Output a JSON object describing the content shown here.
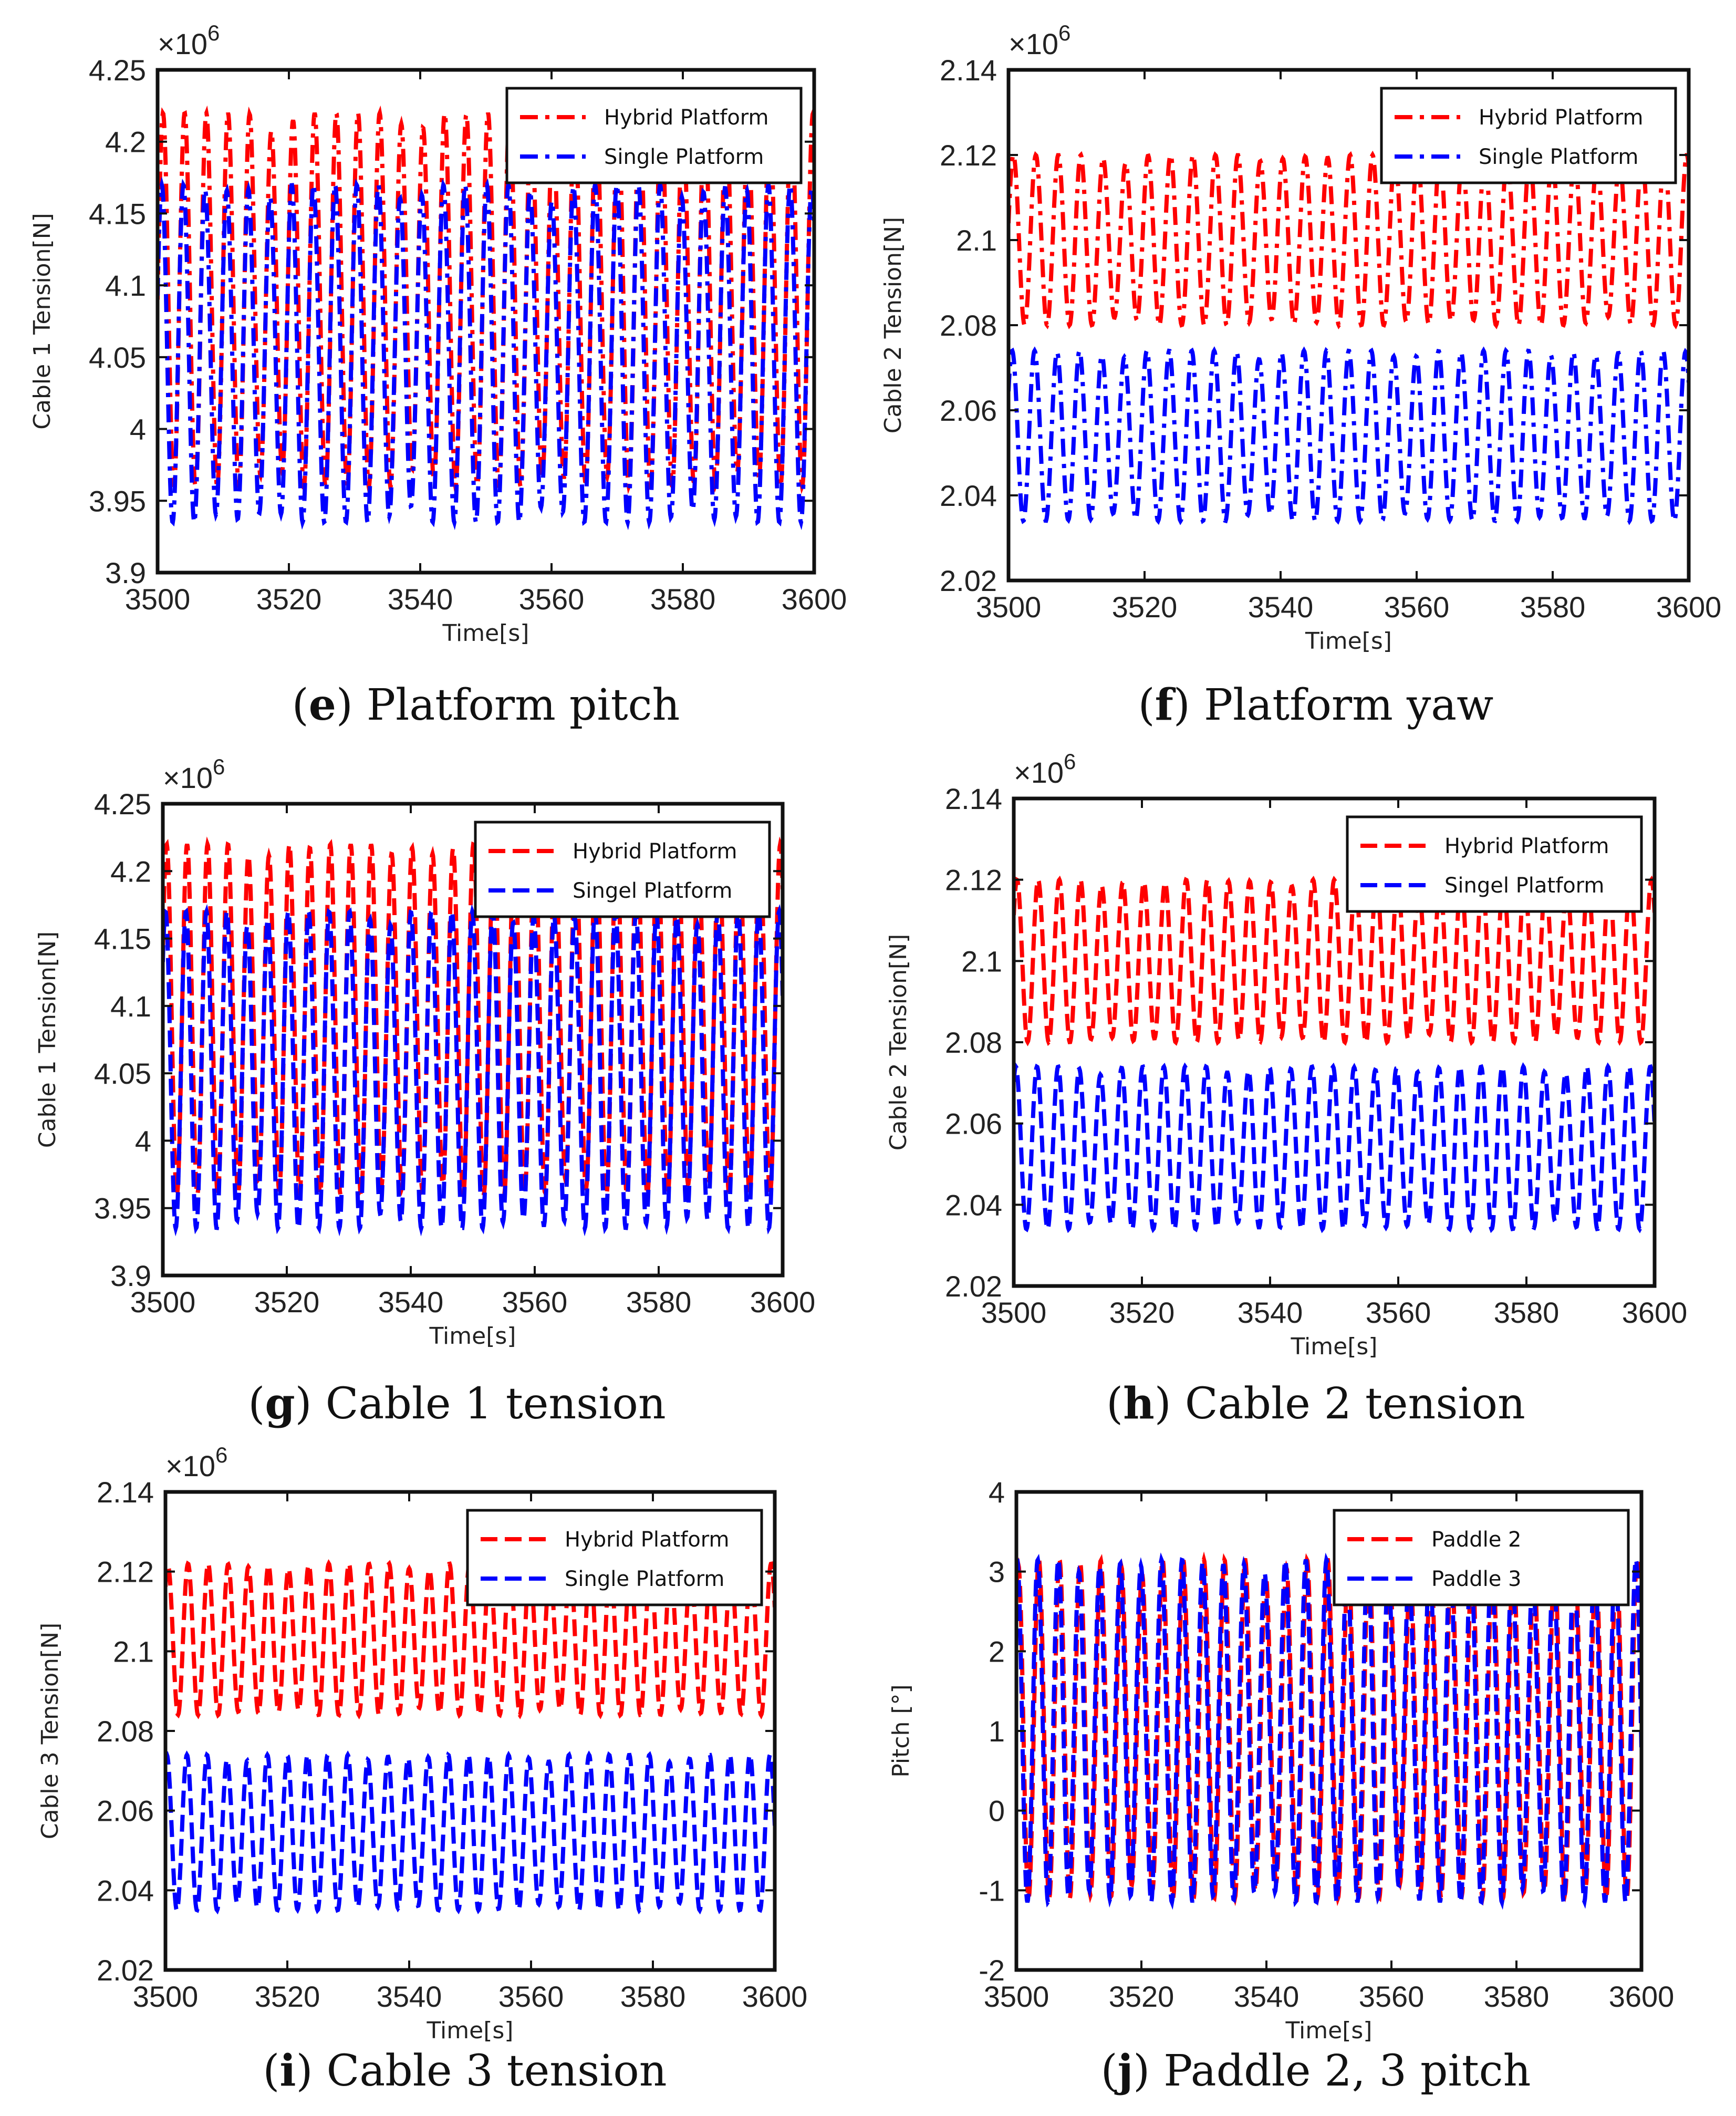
{
  "chart_data": [
    {
      "type": "line",
      "caption": {
        "letter": "e",
        "text": "Platform pitch"
      },
      "xlabel": "Time[s]",
      "ylabel": "Cable 1 Tension[N]",
      "multiplier": "×10",
      "multiplier_exp": "6",
      "xlim": [
        3500,
        3600
      ],
      "ylim": [
        3.9,
        4.25
      ],
      "xticks": [
        3500,
        3520,
        3540,
        3560,
        3580,
        3600
      ],
      "yticks": [
        "3.9",
        "3.95",
        "4",
        "4.05",
        "4.1",
        "4.15",
        "4.2",
        "4.25"
      ],
      "legend_position": "top-right",
      "series": [
        {
          "name": "Hybrid Platform",
          "color": "#ff0000",
          "style": "dash-dot",
          "oscillation": {
            "period_s": 3.3,
            "min": 3.96,
            "max": 4.22
          }
        },
        {
          "name": "Single Platform",
          "color": "#0000ff",
          "style": "dash-dot",
          "oscillation": {
            "period_s": 3.3,
            "min": 3.935,
            "max": 4.17
          }
        }
      ]
    },
    {
      "type": "line",
      "caption": {
        "letter": "f",
        "text": "Platform yaw"
      },
      "xlabel": "Time[s]",
      "ylabel": "Cable 2 Tension[N]",
      "multiplier": "×10",
      "multiplier_exp": "6",
      "xlim": [
        3500,
        3600
      ],
      "ylim": [
        2.02,
        2.14
      ],
      "xticks": [
        3500,
        3520,
        3540,
        3560,
        3580,
        3600
      ],
      "yticks": [
        "2.02",
        "2.04",
        "2.06",
        "2.08",
        "2.1",
        "2.12",
        "2.14"
      ],
      "legend_position": "top-right",
      "series": [
        {
          "name": "Hybrid Platform",
          "color": "#ff0000",
          "style": "dash-dot",
          "oscillation": {
            "period_s": 3.3,
            "min": 2.08,
            "max": 2.12
          }
        },
        {
          "name": "Single Platform",
          "color": "#0000ff",
          "style": "dash-dot",
          "oscillation": {
            "period_s": 3.3,
            "min": 2.034,
            "max": 2.074
          }
        }
      ]
    },
    {
      "type": "line",
      "caption": {
        "letter": "g",
        "text": "Cable 1 tension"
      },
      "xlabel": "Time[s]",
      "ylabel": "Cable 1 Tension[N]",
      "multiplier": "×10",
      "multiplier_exp": "6",
      "xlim": [
        3500,
        3600
      ],
      "ylim": [
        3.9,
        4.25
      ],
      "xticks": [
        3500,
        3520,
        3540,
        3560,
        3580,
        3600
      ],
      "yticks": [
        "3.9",
        "3.95",
        "4",
        "4.05",
        "4.1",
        "4.15",
        "4.2",
        "4.25"
      ],
      "legend_position": "top-right",
      "series": [
        {
          "name": "Hybrid Platform",
          "color": "#ff0000",
          "style": "dashed",
          "oscillation": {
            "period_s": 3.3,
            "min": 3.96,
            "max": 4.22
          }
        },
        {
          "name": "Singel Platform",
          "color": "#0000ff",
          "style": "dashed",
          "oscillation": {
            "period_s": 3.3,
            "min": 3.935,
            "max": 4.17
          }
        }
      ]
    },
    {
      "type": "line",
      "caption": {
        "letter": "h",
        "text": "Cable 2 tension"
      },
      "xlabel": "Time[s]",
      "ylabel": "Cable 2 Tension[N]",
      "multiplier": "×10",
      "multiplier_exp": "6",
      "xlim": [
        3500,
        3600
      ],
      "ylim": [
        2.02,
        2.14
      ],
      "xticks": [
        3500,
        3520,
        3540,
        3560,
        3580,
        3600
      ],
      "yticks": [
        "2.02",
        "2.04",
        "2.06",
        "2.08",
        "2.1",
        "2.12",
        "2.14"
      ],
      "legend_position": "top-right",
      "series": [
        {
          "name": "Hybrid Platform",
          "color": "#ff0000",
          "style": "dashed",
          "oscillation": {
            "period_s": 3.3,
            "min": 2.08,
            "max": 2.12
          }
        },
        {
          "name": "Singel Platform",
          "color": "#0000ff",
          "style": "dashed",
          "oscillation": {
            "period_s": 3.3,
            "min": 2.034,
            "max": 2.074
          }
        }
      ]
    },
    {
      "type": "line",
      "caption": {
        "letter": "i",
        "text": "Cable 3 tension"
      },
      "xlabel": "Time[s]",
      "ylabel": "Cable 3 Tension[N]",
      "multiplier": "×10",
      "multiplier_exp": "6",
      "xlim": [
        3500,
        3600
      ],
      "ylim": [
        2.02,
        2.14
      ],
      "xticks": [
        3500,
        3520,
        3540,
        3560,
        3580,
        3600
      ],
      "yticks": [
        "2.02",
        "2.04",
        "2.06",
        "2.08",
        "2.1",
        "2.12",
        "2.14"
      ],
      "legend_position": "top-right",
      "series": [
        {
          "name": "Hybrid Platform",
          "color": "#ff0000",
          "style": "dashed",
          "oscillation": {
            "period_s": 3.3,
            "min": 2.084,
            "max": 2.122
          }
        },
        {
          "name": "Single Platform",
          "color": "#0000ff",
          "style": "dashed",
          "oscillation": {
            "period_s": 3.3,
            "min": 2.035,
            "max": 2.074
          }
        }
      ]
    },
    {
      "type": "line",
      "caption": {
        "letter": "j",
        "text": "Paddle 2, 3 pitch"
      },
      "xlabel": "Time[s]",
      "ylabel": "Pitch [°]",
      "multiplier": "",
      "multiplier_exp": "",
      "xlim": [
        3500,
        3600
      ],
      "ylim": [
        -2,
        4
      ],
      "xticks": [
        3500,
        3520,
        3540,
        3560,
        3580,
        3600
      ],
      "yticks": [
        "-2",
        "-1",
        "0",
        "1",
        "2",
        "3",
        "4"
      ],
      "legend_position": "top-right",
      "series": [
        {
          "name": "Paddle 2",
          "color": "#ff0000",
          "style": "dashed",
          "oscillation": {
            "period_s": 3.3,
            "min": -1.1,
            "max": 3.15
          }
        },
        {
          "name": "Paddle 3",
          "color": "#0000ff",
          "style": "dashed",
          "oscillation": {
            "period_s": 3.3,
            "min": -1.15,
            "max": 3.15
          }
        }
      ]
    }
  ]
}
